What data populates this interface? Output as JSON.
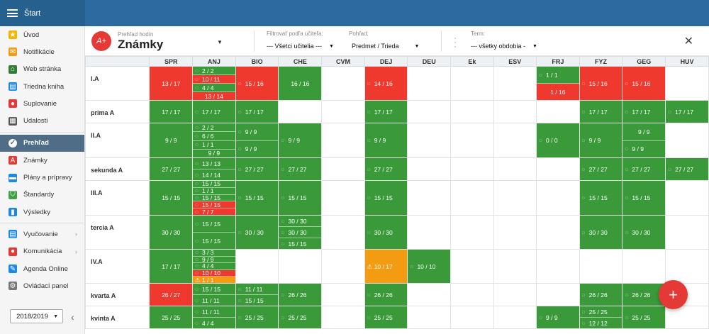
{
  "topbar": {
    "title": "Štart"
  },
  "sidebar": {
    "items": [
      {
        "label": "Úvod",
        "icon": "star-icon",
        "glyph": "★",
        "color": "#f4b400",
        "active": false
      },
      {
        "label": "Notifikácie",
        "icon": "envelope-icon",
        "glyph": "✉",
        "color": "#f39c12",
        "active": false
      },
      {
        "label": "Web stránka",
        "icon": "home-icon",
        "glyph": "⌂",
        "color": "#2e7d32",
        "active": false
      },
      {
        "label": "Triedna kniha",
        "icon": "book-icon",
        "glyph": "▤",
        "color": "#1e88e5",
        "active": false
      },
      {
        "label": "Suplovanie",
        "icon": "person-icon",
        "glyph": "●",
        "color": "#e53935",
        "active": false
      },
      {
        "label": "Udalosti",
        "icon": "calendar-icon",
        "glyph": "▦",
        "color": "#555555",
        "active": false
      },
      {
        "label": "Prehľad",
        "icon": "check-circle-icon",
        "glyph": "✓",
        "color": "#4f6d87",
        "active": true
      },
      {
        "label": "Známky",
        "icon": "grade-icon",
        "glyph": "A",
        "color": "#e53935",
        "active": false
      },
      {
        "label": "Plány a prípravy",
        "icon": "briefcase-icon",
        "glyph": "▬",
        "color": "#1e88e5",
        "active": false
      },
      {
        "label": "Štandardy",
        "icon": "shield-icon",
        "glyph": "⛉",
        "color": "#43a047",
        "active": false
      },
      {
        "label": "Výsledky",
        "icon": "bar-chart-icon",
        "glyph": "▮",
        "color": "#1e88e5",
        "active": false
      },
      {
        "label": "Vyučovanie",
        "icon": "teaching-icon",
        "glyph": "▤",
        "color": "#1e88e5",
        "active": false,
        "chevron": "›"
      },
      {
        "label": "Komunikácia",
        "icon": "chat-icon",
        "glyph": "●",
        "color": "#e53935",
        "active": false,
        "chevron": "›"
      },
      {
        "label": "Agenda Online",
        "icon": "pen-icon",
        "glyph": "✎",
        "color": "#1e88e5",
        "active": false
      },
      {
        "label": "Ovládací panel",
        "icon": "gear-icon",
        "glyph": "⚙",
        "color": "#777777",
        "active": false
      }
    ],
    "year": "2018/2019",
    "collapse": "‹"
  },
  "toolbar": {
    "subtitle": "Prehľad hodín",
    "title": "Známky",
    "logo": "A+",
    "teacher_label": "Filtrovať podľa učiteľa:",
    "teacher_value": "--- Všetci učitelia ---",
    "view_label": "Pohľad:",
    "view_value": "Predmet / Trieda",
    "term_label": "Term:",
    "term_value": "--- všetky obdobia -",
    "close": "✕"
  },
  "colors": {
    "green": "#3a9a3a",
    "red": "#f0392e",
    "orange": "#f39c12"
  },
  "grid": {
    "columns": [
      "SPR",
      "ANJ",
      "BIO",
      "CHE",
      "CVM",
      "DEJ",
      "DEU",
      "Ek",
      "ESV",
      "FRJ",
      "FYZ",
      "GEG",
      "HUV"
    ],
    "rows": [
      {
        "name": "I.A",
        "h": 48,
        "cells": [
          [
            [
              "r",
              "13 / 17",
              0
            ]
          ],
          [
            [
              "g",
              "2 / 2",
              1
            ],
            [
              "r",
              "10 / 11",
              1
            ],
            [
              "g",
              "4 / 4",
              1
            ],
            [
              "r",
              "13 / 14",
              0
            ]
          ],
          [
            [
              "r",
              "15 / 16",
              1
            ]
          ],
          [
            [
              "g",
              "16 / 16",
              0
            ]
          ],
          [],
          [
            [
              "r",
              "14 / 16",
              1
            ]
          ],
          [],
          [],
          [],
          [
            [
              "g",
              "1 / 1",
              1
            ],
            [
              "r",
              "1 / 16",
              0
            ]
          ],
          [
            [
              "r",
              "15 / 16",
              1
            ]
          ],
          [
            [
              "r",
              "15 / 16",
              1
            ]
          ],
          []
        ]
      },
      {
        "name": "prima A",
        "h": 32,
        "cells": [
          [
            [
              "g",
              "17 / 17",
              0
            ]
          ],
          [
            [
              "g",
              "17 / 17",
              1
            ]
          ],
          [
            [
              "g",
              "17 / 17",
              1
            ]
          ],
          [],
          [],
          [
            [
              "g",
              "17 / 17",
              1
            ]
          ],
          [],
          [],
          [],
          [],
          [
            [
              "g",
              "17 / 17",
              1
            ]
          ],
          [
            [
              "g",
              "17 / 17",
              1
            ]
          ],
          [
            [
              "g",
              "17 / 17",
              1
            ]
          ]
        ]
      },
      {
        "name": "II.A",
        "h": 49,
        "cells": [
          [
            [
              "g",
              "9 / 9",
              0
            ]
          ],
          [
            [
              "g",
              "2 / 2",
              1
            ],
            [
              "g",
              "6 / 6",
              1
            ],
            [
              "g",
              "1 / 1",
              1
            ],
            [
              "g",
              "9 / 9",
              0
            ]
          ],
          [
            [
              "g",
              "9 / 9",
              1
            ],
            [
              "g",
              "9 / 9",
              1
            ]
          ],
          [
            [
              "g",
              "9 / 9",
              1
            ]
          ],
          [],
          [
            [
              "g",
              "9 / 9",
              1
            ]
          ],
          [],
          [],
          [],
          [
            [
              "g",
              "0 / 0",
              1
            ]
          ],
          [
            [
              "g",
              "9 / 9",
              1
            ]
          ],
          [
            [
              "g",
              "9 / 9",
              0
            ],
            [
              "g",
              "9 / 9",
              1
            ]
          ],
          []
        ]
      },
      {
        "name": "sekunda A",
        "h": 32,
        "cells": [
          [
            [
              "g",
              "27 / 27",
              0
            ]
          ],
          [
            [
              "g",
              "13 / 13",
              1
            ],
            [
              "g",
              "14 / 14",
              1
            ]
          ],
          [
            [
              "g",
              "27 / 27",
              1
            ]
          ],
          [
            [
              "g",
              "27 / 27",
              1
            ]
          ],
          [],
          [
            [
              "g",
              "27 / 27",
              1
            ]
          ],
          [],
          [],
          [],
          [],
          [
            [
              "g",
              "27 / 27",
              1
            ]
          ],
          [
            [
              "g",
              "27 / 27",
              1
            ]
          ],
          [
            [
              "g",
              "27 / 27",
              1
            ]
          ]
        ]
      },
      {
        "name": "III.A",
        "h": 49,
        "cells": [
          [
            [
              "g",
              "15 / 15",
              0
            ]
          ],
          [
            [
              "g",
              "15 / 15",
              1
            ],
            [
              "g",
              "1 / 1",
              1
            ],
            [
              "g",
              "15 / 15",
              1
            ],
            [
              "r",
              "15 / 15",
              1
            ],
            [
              "r",
              "7 / 7",
              1
            ]
          ],
          [
            [
              "g",
              "15 / 15",
              1
            ]
          ],
          [
            [
              "g",
              "15 / 15",
              1
            ]
          ],
          [],
          [
            [
              "g",
              "15 / 15",
              1
            ]
          ],
          [],
          [],
          [],
          [],
          [
            [
              "g",
              "15 / 15",
              1
            ]
          ],
          [
            [
              "g",
              "15 / 15",
              1
            ]
          ],
          []
        ]
      },
      {
        "name": "tercia A",
        "h": 48,
        "cells": [
          [
            [
              "g",
              "30 / 30",
              0
            ]
          ],
          [
            [
              "g",
              "15 / 15",
              1
            ],
            [
              "g",
              "15 / 15",
              1
            ]
          ],
          [
            [
              "g",
              "30 / 30",
              1
            ]
          ],
          [
            [
              "g",
              "30 / 30",
              1
            ],
            [
              "g",
              "30 / 30",
              1
            ],
            [
              "g",
              "15 / 15",
              1
            ]
          ],
          [],
          [
            [
              "g",
              "30 / 30",
              1
            ]
          ],
          [],
          [],
          [],
          [],
          [
            [
              "g",
              "30 / 30",
              1
            ]
          ],
          [
            [
              "g",
              "30 / 30",
              1
            ]
          ],
          []
        ]
      },
      {
        "name": "IV.A",
        "h": 48,
        "cells": [
          [
            [
              "g",
              "17 / 17",
              0
            ]
          ],
          [
            [
              "g",
              "3 / 3",
              1
            ],
            [
              "g",
              "9 / 9",
              1
            ],
            [
              "g",
              "4 / 4",
              1
            ],
            [
              "r",
              "10 / 10",
              1
            ],
            [
              "o",
              "1 / 1",
              1
            ]
          ],
          [],
          [],
          [],
          [
            [
              "o",
              "10 / 17",
              1
            ]
          ],
          [
            [
              "g",
              "10 / 10",
              1
            ]
          ],
          [],
          [],
          [],
          [],
          [],
          []
        ]
      },
      {
        "name": "kvarta A",
        "h": 32,
        "cells": [
          [
            [
              "r",
              "26 / 27",
              0
            ]
          ],
          [
            [
              "g",
              "15 / 15",
              1
            ],
            [
              "g",
              "11 / 11",
              1
            ]
          ],
          [
            [
              "g",
              "11 / 11",
              1
            ],
            [
              "g",
              "15 / 15",
              1
            ]
          ],
          [
            [
              "g",
              "26 / 26",
              1
            ]
          ],
          [],
          [
            [
              "g",
              "26 / 26",
              1
            ]
          ],
          [],
          [],
          [],
          [],
          [
            [
              "g",
              "26 / 26",
              1
            ]
          ],
          [
            [
              "g",
              "26 / 26",
              1
            ]
          ],
          []
        ]
      },
      {
        "name": "kvinta A",
        "h": 32,
        "cells": [
          [
            [
              "g",
              "25 / 25",
              0
            ]
          ],
          [
            [
              "g",
              "11 / 11",
              1
            ],
            [
              "g",
              "4 / 4",
              1
            ]
          ],
          [
            [
              "g",
              "25 / 25",
              1
            ]
          ],
          [
            [
              "g",
              "25 / 25",
              1
            ]
          ],
          [],
          [
            [
              "g",
              "25 / 25",
              1
            ]
          ],
          [],
          [],
          [],
          [
            [
              "g",
              "9 / 9",
              1
            ]
          ],
          [
            [
              "g",
              "25 / 25",
              1
            ],
            [
              "g",
              "12 / 12",
              1
            ]
          ],
          [
            [
              "g",
              "25 / 25",
              1
            ]
          ],
          []
        ]
      }
    ]
  },
  "fab": {
    "label": "+"
  }
}
